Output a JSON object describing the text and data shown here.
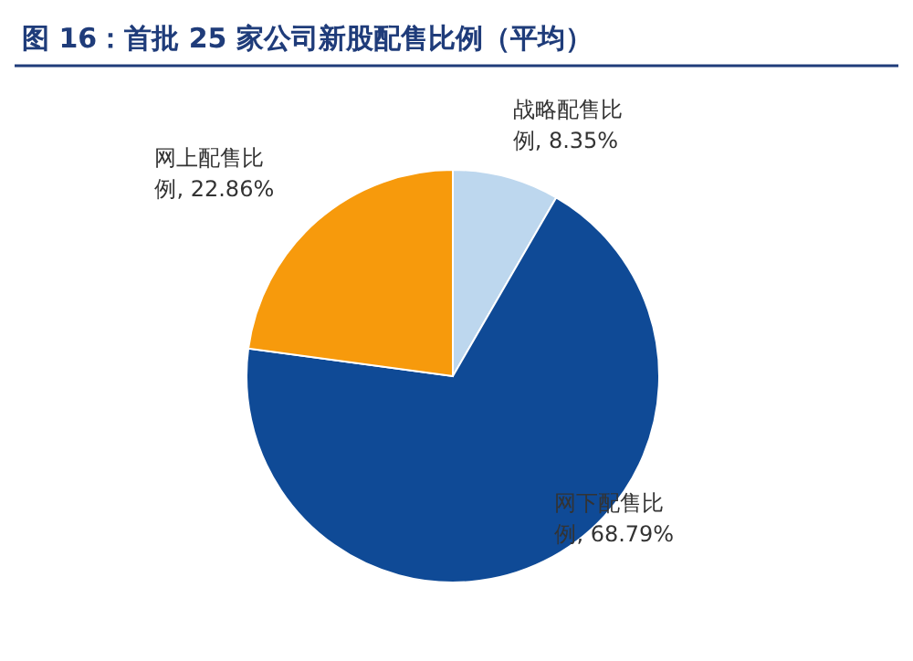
{
  "chart_data": {
    "type": "pie",
    "title": "图 16：首批 25 家公司新股配售比例（平均）",
    "categories": [
      "战略配售比例",
      "网下配售比例",
      "网上配售比例"
    ],
    "values": [
      8.35,
      68.79,
      22.86
    ],
    "value_labels": [
      ", 8.35%",
      ", 68.79%",
      ", 22.86%"
    ],
    "colors": [
      "#bdd7ee",
      "#0f4a96",
      "#f79a0c"
    ]
  }
}
